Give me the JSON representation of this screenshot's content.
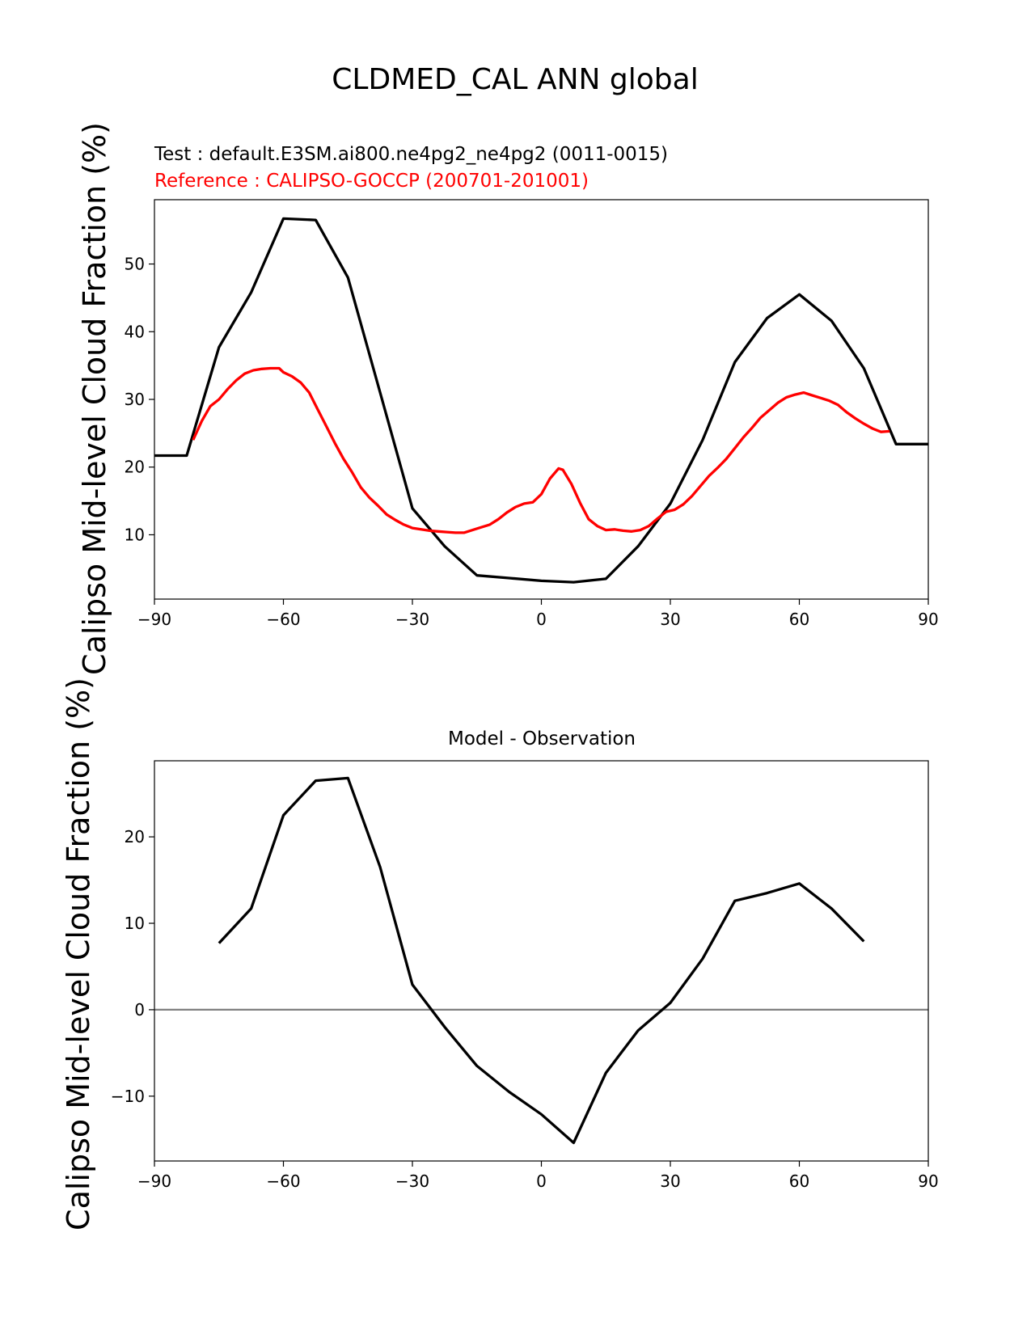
{
  "figure": {
    "title": "CLDMED_CAL ANN global"
  },
  "chart_data": [
    {
      "type": "line",
      "test_label": "Test : default.E3SM.ai800.ne4pg2_ne4pg2 (0011-0015)",
      "reference_label": "Reference : CALIPSO-GOCCP (200701-201001)",
      "ylabel": "Calipso Mid-level Cloud Fraction (%)",
      "xlim": [
        -90,
        90
      ],
      "ylim": [
        0.5,
        59.5
      ],
      "xticks": [
        -90,
        -60,
        -30,
        0,
        30,
        60,
        90
      ],
      "xtick_labels": [
        "−90",
        "−60",
        "−30",
        "0",
        "30",
        "60",
        "90"
      ],
      "yticks": [
        10,
        20,
        30,
        40,
        50
      ],
      "ytick_labels": [
        "10",
        "20",
        "30",
        "40",
        "50"
      ],
      "grid": false,
      "series": [
        {
          "role": "test",
          "color": "#000000",
          "x": [
            -90,
            -82.5,
            -75,
            -67.5,
            -60,
            -52.5,
            -45,
            -37.5,
            -30,
            -22.5,
            -15,
            -7.5,
            0,
            7.5,
            15,
            22.5,
            30,
            37.5,
            45,
            52.5,
            60,
            67.5,
            75,
            82.5,
            90
          ],
          "y": [
            21.7,
            21.7,
            37.7,
            45.8,
            56.7,
            56.5,
            48.0,
            31.0,
            13.9,
            8.3,
            4.0,
            3.6,
            3.2,
            3.0,
            3.5,
            8.3,
            14.6,
            24.0,
            35.5,
            42.0,
            45.5,
            41.6,
            34.6,
            23.4,
            23.4
          ]
        },
        {
          "role": "reference",
          "color": "#ff0000",
          "x": [
            -81,
            -79,
            -77,
            -75,
            -73,
            -71,
            -69,
            -67,
            -65,
            -63,
            -61,
            -60,
            -58,
            -56,
            -54,
            -52,
            -50,
            -48,
            -46,
            -44,
            -42,
            -40,
            -38,
            -36,
            -34,
            -32,
            -30,
            -28,
            -26,
            -24,
            -22,
            -20,
            -18,
            -16,
            -14,
            -12,
            -10,
            -8,
            -6,
            -4,
            -2,
            0,
            2,
            4,
            5,
            7,
            9,
            11,
            13,
            15,
            17,
            19,
            21,
            23,
            25,
            27,
            29,
            31,
            33,
            35,
            37,
            39,
            41,
            43,
            45,
            47,
            49,
            51,
            53,
            55,
            57,
            59,
            61,
            63,
            65,
            67,
            69,
            71,
            73,
            75,
            77,
            79,
            81
          ],
          "y": [
            24.0,
            26.8,
            29.0,
            30.0,
            31.5,
            32.8,
            33.8,
            34.3,
            34.5,
            34.6,
            34.6,
            34.0,
            33.4,
            32.5,
            31.0,
            28.5,
            26.0,
            23.5,
            21.2,
            19.2,
            17.0,
            15.5,
            14.3,
            13.0,
            12.2,
            11.5,
            11.0,
            10.8,
            10.6,
            10.5,
            10.4,
            10.3,
            10.3,
            10.7,
            11.1,
            11.5,
            12.3,
            13.3,
            14.1,
            14.6,
            14.8,
            16.0,
            18.3,
            19.8,
            19.6,
            17.5,
            14.7,
            12.3,
            11.3,
            10.7,
            10.8,
            10.6,
            10.5,
            10.7,
            11.3,
            12.4,
            13.4,
            13.7,
            14.5,
            15.7,
            17.2,
            18.7,
            19.9,
            21.2,
            22.8,
            24.4,
            25.8,
            27.3,
            28.4,
            29.5,
            30.3,
            30.7,
            31.0,
            30.6,
            30.2,
            29.8,
            29.2,
            28.1,
            27.2,
            26.4,
            25.7,
            25.2,
            25.3
          ]
        }
      ]
    },
    {
      "type": "line",
      "title": "Model - Observation",
      "ylabel": "Calipso Mid-level Cloud Fraction (%)",
      "xlim": [
        -90,
        90
      ],
      "ylim": [
        -17.5,
        28.8
      ],
      "xticks": [
        -90,
        -60,
        -30,
        0,
        30,
        60,
        90
      ],
      "xtick_labels": [
        "−90",
        "−60",
        "−30",
        "0",
        "30",
        "60",
        "90"
      ],
      "yticks": [
        -10,
        0,
        10,
        20
      ],
      "ytick_labels": [
        "−10",
        "0",
        "10",
        "20"
      ],
      "grid": false,
      "zero_line_color": "#808080",
      "series": [
        {
          "role": "difference",
          "color": "#000000",
          "x": [
            -75,
            -67.5,
            -60,
            -52.5,
            -45,
            -37.5,
            -30,
            -22.5,
            -15,
            -7.5,
            0,
            7.5,
            15,
            22.5,
            30,
            37.5,
            45,
            52.5,
            60,
            67.5,
            75
          ],
          "y": [
            7.7,
            11.7,
            22.5,
            26.5,
            26.8,
            16.5,
            2.9,
            -2.0,
            -6.5,
            -9.5,
            -12.1,
            -15.4,
            -7.3,
            -2.4,
            0.8,
            5.9,
            12.6,
            13.5,
            14.6,
            11.7,
            7.9
          ]
        }
      ]
    }
  ]
}
